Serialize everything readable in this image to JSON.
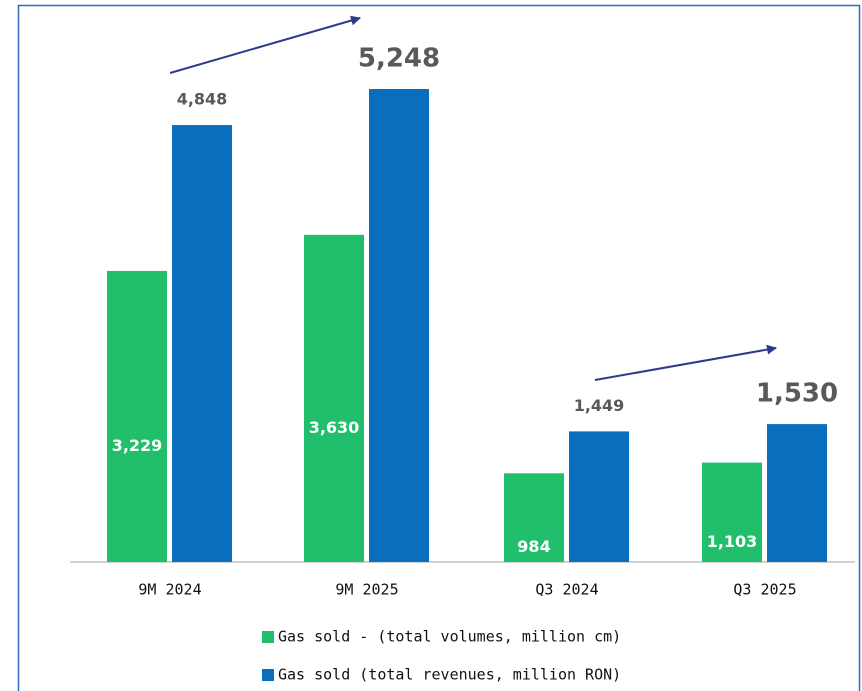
{
  "chart_data": {
    "type": "bar",
    "categories": [
      "9M 2024",
      "9M 2025",
      "Q3 2024",
      "Q3 2025"
    ],
    "series": [
      {
        "name": "Gas sold - (total volumes, million cm)",
        "color": "#21bf6b",
        "values": [
          3229,
          3630,
          984,
          1103
        ],
        "value_labels": [
          "3,229",
          "3,630",
          "984",
          "1,103"
        ]
      },
      {
        "name": "Gas sold (total revenues, million RON)",
        "color": "#0a6ebf",
        "values": [
          4848,
          5248,
          1449,
          1530
        ],
        "value_labels": [
          "4,848",
          "5,248",
          "1,449",
          "1,530"
        ]
      }
    ]
  }
}
